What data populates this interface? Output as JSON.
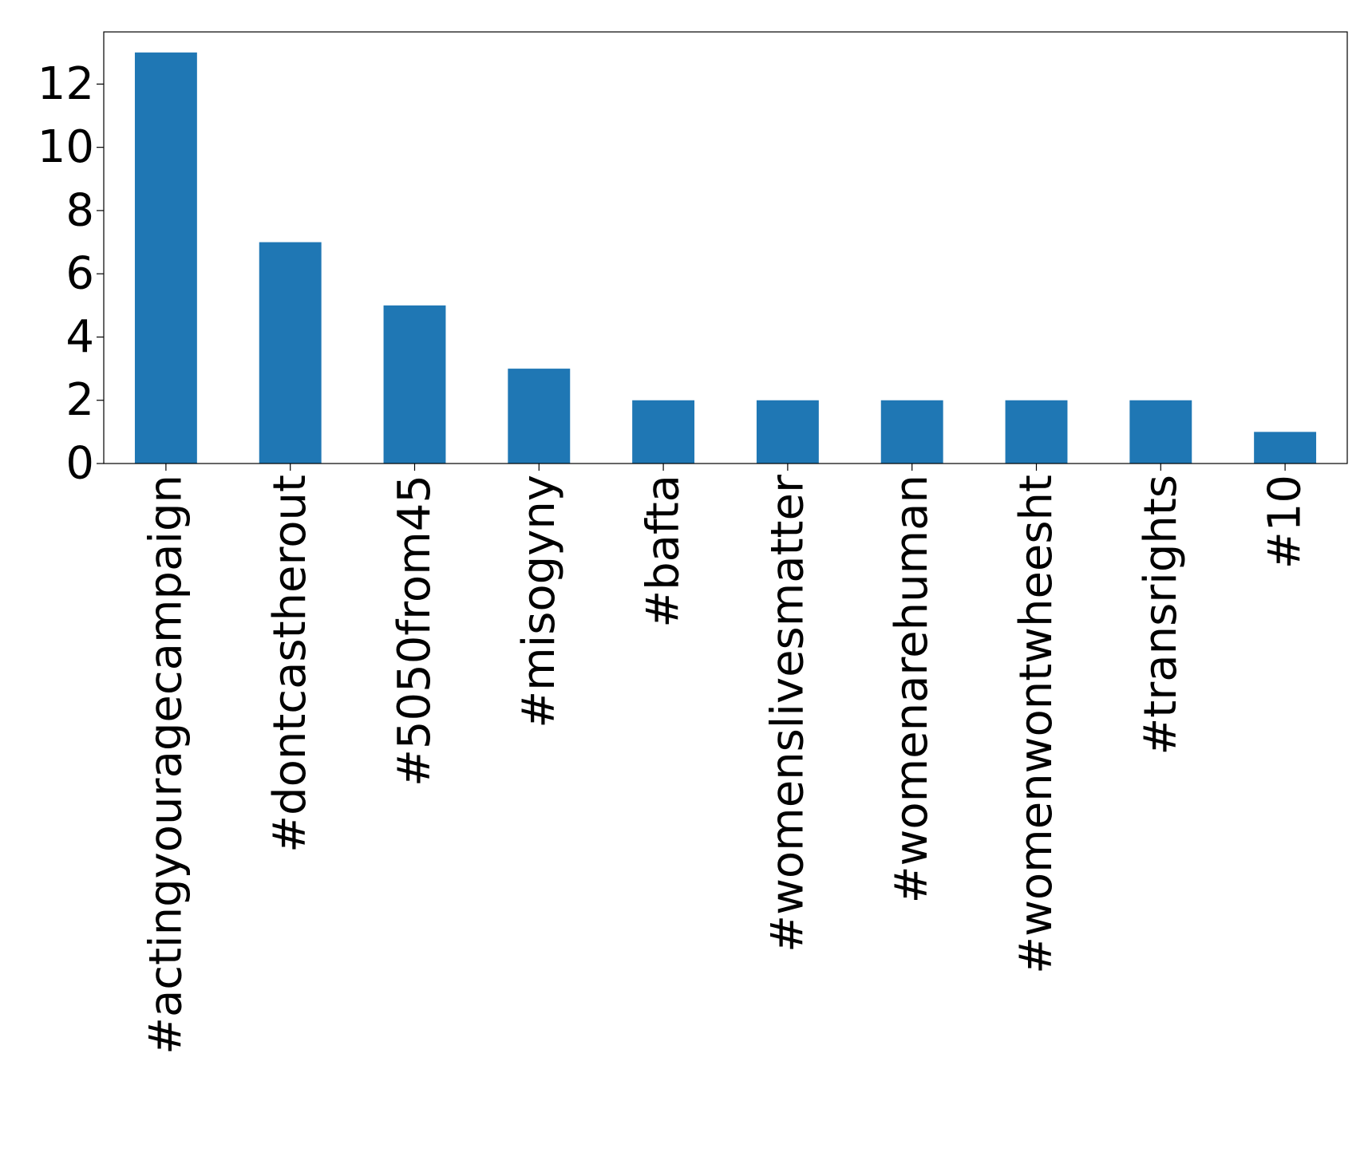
{
  "chart_data": {
    "type": "bar",
    "title": "",
    "xlabel": "",
    "ylabel": "",
    "categories": [
      "#actingyouragecampaign",
      "#dontcastherout",
      "#5050from45",
      "#misogyny",
      "#bafta",
      "#womenslivesmatter",
      "#womenarehuman",
      "#womenwontwheesht",
      "#transrights",
      "#10"
    ],
    "values": [
      13,
      7,
      5,
      3,
      2,
      2,
      2,
      2,
      2,
      1
    ],
    "ylim": [
      0,
      13.65
    ],
    "yticks": [
      0,
      2,
      4,
      6,
      8,
      10,
      12
    ],
    "grid": false,
    "bar_color": "#1f77b4"
  }
}
